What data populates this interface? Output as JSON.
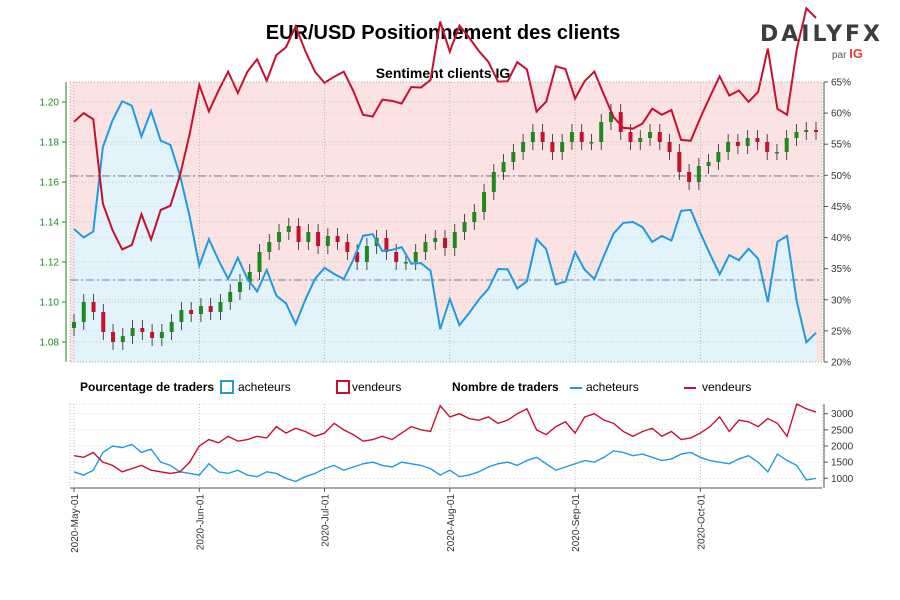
{
  "header": {
    "title": "EUR/USD Positionnement des clients",
    "subtitle": "Sentiment clients IG",
    "logo": "DAILYFX",
    "logo_by": "par",
    "logo_brand": "IG"
  },
  "legend": {
    "pct_title": "Pourcentage de traders",
    "pct_buyers": "acheteurs",
    "pct_sellers": "vendeurs",
    "num_title": "Nombre de traders",
    "num_buyers": "acheteurs",
    "num_sellers": "vendeurs"
  },
  "colors": {
    "buyers": "#1f9be0",
    "sellers": "#c8102e",
    "buyers_fill": "#e3f3fb",
    "sellers_fill": "#fbe3e4",
    "candle_up": "#1e8a1e",
    "candle_down": "#c8102e",
    "left_axis": "#1e8a1e"
  },
  "chart_data": [
    {
      "type": "candlestick",
      "series_name": "EUR/USD",
      "ylim": [
        1.07,
        1.21
      ],
      "yticks": [
        1.08,
        1.1,
        1.12,
        1.14,
        1.16,
        1.18,
        1.2
      ],
      "reference_lines": [
        1.163,
        1.111
      ],
      "ohlc_close_sample": [
        1.09,
        1.1,
        1.095,
        1.085,
        1.08,
        1.083,
        1.087,
        1.085,
        1.082,
        1.085,
        1.09,
        1.096,
        1.094,
        1.098,
        1.095,
        1.1,
        1.105,
        1.11,
        1.115,
        1.125,
        1.13,
        1.135,
        1.138,
        1.13,
        1.135,
        1.128,
        1.133,
        1.13,
        1.125,
        1.12,
        1.128,
        1.132,
        1.125,
        1.12,
        1.12,
        1.125,
        1.13,
        1.132,
        1.127,
        1.135,
        1.14,
        1.145,
        1.155,
        1.165,
        1.17,
        1.175,
        1.18,
        1.185,
        1.18,
        1.175,
        1.18,
        1.185,
        1.18,
        1.18,
        1.19,
        1.195,
        1.185,
        1.18,
        1.182,
        1.185,
        1.18,
        1.175,
        1.165,
        1.16,
        1.168,
        1.17,
        1.175,
        1.18,
        1.178,
        1.182,
        1.18,
        1.175,
        1.175,
        1.182,
        1.185,
        1.186,
        1.185
      ],
      "buyers_pct_right_axis": {
        "ylim": [
          20,
          65
        ],
        "yticks": [
          "20%",
          "25%",
          "30%",
          "35%",
          "40%",
          "45%",
          "50%",
          "55%",
          "60%",
          "65%"
        ],
        "reference_line": 50
      }
    },
    {
      "type": "line",
      "title": "Nombre de traders",
      "ylim": [
        700,
        3300
      ],
      "yticks": [
        1000,
        1500,
        2000,
        2500,
        3000
      ],
      "x_ticks": [
        "2020-May-01",
        "2020-Jun-01",
        "2020-Jul-01",
        "2020-Aug-01",
        "2020-Sep-01",
        "2020-Oct-01"
      ],
      "series": [
        {
          "name": "acheteurs",
          "values": [
            1200,
            1100,
            1250,
            1800,
            2000,
            1950,
            2050,
            1800,
            1900,
            1500,
            1400,
            1200,
            1150,
            1100,
            1450,
            1200,
            1150,
            1250,
            1100,
            1050,
            1200,
            1150,
            1000,
            900,
            1050,
            1150,
            1300,
            1400,
            1250,
            1350,
            1450,
            1500,
            1400,
            1350,
            1500,
            1450,
            1400,
            1300,
            1100,
            1250,
            1050,
            1100,
            1200,
            1350,
            1450,
            1500,
            1400,
            1550,
            1650,
            1450,
            1250,
            1350,
            1450,
            1550,
            1500,
            1650,
            1850,
            1800,
            1700,
            1750,
            1650,
            1550,
            1600,
            1750,
            1800,
            1650,
            1550,
            1500,
            1450,
            1600,
            1700,
            1500,
            1200,
            1750,
            1550,
            1400,
            950,
            1000
          ]
        },
        {
          "name": "vendeurs",
          "values": [
            1700,
            1650,
            1800,
            1500,
            1400,
            1200,
            1300,
            1400,
            1250,
            1200,
            1150,
            1200,
            1500,
            2000,
            2200,
            2100,
            2300,
            2150,
            2200,
            2300,
            2250,
            2600,
            2400,
            2550,
            2450,
            2300,
            2400,
            2700,
            2500,
            2350,
            2150,
            2200,
            2300,
            2200,
            2400,
            2600,
            2500,
            2450,
            3250,
            2900,
            3000,
            2850,
            2800,
            2900,
            2700,
            2800,
            3000,
            3150,
            2500,
            2350,
            2600,
            2750,
            2400,
            2900,
            3000,
            2800,
            2700,
            2450,
            2300,
            2450,
            2550,
            2300,
            2450,
            2200,
            2250,
            2400,
            2600,
            2900,
            2450,
            2800,
            2750,
            2600,
            2850,
            2700,
            2300,
            3300,
            3150,
            3050
          ]
        }
      ]
    }
  ]
}
